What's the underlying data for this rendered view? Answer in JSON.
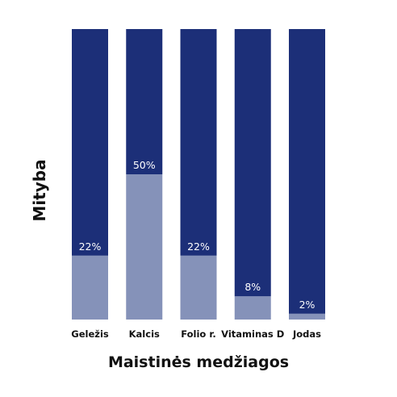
{
  "chart_data": {
    "type": "bar",
    "stacked": true,
    "title": "",
    "xlabel": "Maistinės medžiagos",
    "ylabel": "Mityba",
    "ylim": [
      0,
      100
    ],
    "categories": [
      "Geležis",
      "Kalcis",
      "Folio r.",
      "Vitaminas D",
      "Jodas"
    ],
    "value_labels": [
      "22%",
      "50%",
      "22%",
      "8%",
      "2%"
    ],
    "series": [
      {
        "values": [
          22,
          50,
          22,
          8,
          2
        ],
        "color": "#8592b9"
      },
      {
        "values": [
          78,
          50,
          78,
          92,
          98
        ],
        "color": "#1c2f78"
      }
    ],
    "grid": false,
    "legend": "none"
  }
}
